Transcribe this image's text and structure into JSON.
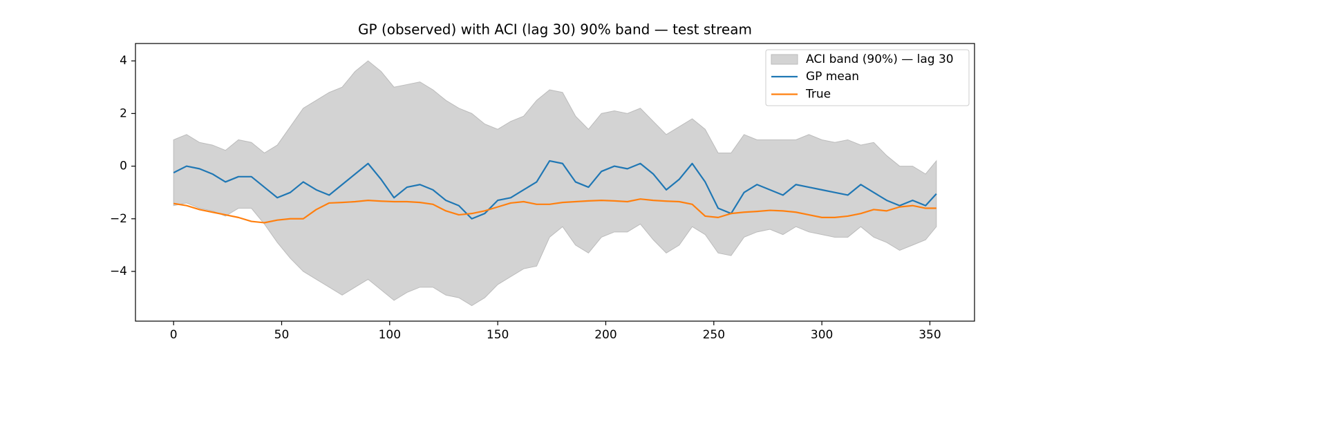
{
  "chart_data": {
    "type": "line",
    "title": "GP (observed) with ACI (lag 30) 90% band — test stream",
    "x": [
      0,
      6,
      12,
      18,
      24,
      30,
      36,
      42,
      48,
      54,
      60,
      66,
      72,
      78,
      84,
      90,
      96,
      102,
      108,
      114,
      120,
      126,
      132,
      138,
      144,
      150,
      156,
      162,
      168,
      174,
      180,
      186,
      192,
      198,
      204,
      210,
      216,
      222,
      228,
      234,
      240,
      246,
      252,
      258,
      264,
      270,
      276,
      282,
      288,
      294,
      300,
      306,
      312,
      318,
      324,
      330,
      336,
      342,
      348,
      353
    ],
    "band": {
      "name": "ACI band (90%) — lag 30",
      "color": "#d3d3d3",
      "edge_color": "#bbbbbb",
      "upper": [
        1.0,
        1.2,
        0.9,
        0.8,
        0.6,
        1.0,
        0.9,
        0.5,
        0.8,
        1.5,
        2.2,
        2.5,
        2.8,
        3.0,
        3.6,
        4.0,
        3.6,
        3.0,
        3.1,
        3.2,
        2.9,
        2.5,
        2.2,
        2.0,
        1.6,
        1.4,
        1.7,
        1.9,
        2.5,
        2.9,
        2.8,
        1.9,
        1.4,
        2.0,
        2.1,
        2.0,
        2.2,
        1.7,
        1.2,
        1.5,
        1.8,
        1.4,
        0.5,
        0.5,
        1.2,
        1.0,
        1.0,
        1.0,
        1.0,
        1.2,
        1.0,
        0.9,
        1.0,
        0.8,
        0.9,
        0.4,
        0.0,
        0.0,
        -0.3,
        0.2
      ],
      "lower": [
        -1.5,
        -1.4,
        -1.6,
        -1.7,
        -1.9,
        -1.6,
        -1.6,
        -2.2,
        -2.9,
        -3.5,
        -4.0,
        -4.3,
        -4.6,
        -4.9,
        -4.6,
        -4.3,
        -4.7,
        -5.1,
        -4.8,
        -4.6,
        -4.6,
        -4.9,
        -5.0,
        -5.3,
        -5.0,
        -4.5,
        -4.2,
        -3.9,
        -3.8,
        -2.7,
        -2.3,
        -3.0,
        -3.3,
        -2.7,
        -2.5,
        -2.5,
        -2.2,
        -2.8,
        -3.3,
        -3.0,
        -2.3,
        -2.6,
        -3.3,
        -3.4,
        -2.7,
        -2.5,
        -2.4,
        -2.6,
        -2.3,
        -2.5,
        -2.6,
        -2.7,
        -2.7,
        -2.3,
        -2.7,
        -2.9,
        -3.2,
        -3.0,
        -2.8,
        -2.3
      ]
    },
    "series": [
      {
        "name": "GP mean",
        "color": "#1f77b4",
        "values": [
          -0.25,
          0.0,
          -0.1,
          -0.3,
          -0.6,
          -0.4,
          -0.4,
          -0.8,
          -1.2,
          -1.0,
          -0.6,
          -0.9,
          -1.1,
          -0.7,
          -0.3,
          0.1,
          -0.5,
          -1.2,
          -0.8,
          -0.7,
          -0.9,
          -1.3,
          -1.5,
          -2.0,
          -1.8,
          -1.3,
          -1.2,
          -0.9,
          -0.6,
          0.2,
          0.1,
          -0.6,
          -0.8,
          -0.2,
          0.0,
          -0.1,
          0.1,
          -0.3,
          -0.9,
          -0.5,
          0.1,
          -0.6,
          -1.6,
          -1.8,
          -1.0,
          -0.7,
          -0.9,
          -1.1,
          -0.7,
          -0.8,
          -0.9,
          -1.0,
          -1.1,
          -0.7,
          -1.0,
          -1.3,
          -1.5,
          -1.3,
          -1.5,
          -1.05
        ]
      },
      {
        "name": "True",
        "color": "#ff7f0e",
        "values": [
          -1.42,
          -1.5,
          -1.65,
          -1.75,
          -1.85,
          -1.95,
          -2.1,
          -2.15,
          -2.05,
          -2.0,
          -2.0,
          -1.65,
          -1.4,
          -1.38,
          -1.35,
          -1.3,
          -1.33,
          -1.35,
          -1.35,
          -1.38,
          -1.45,
          -1.7,
          -1.85,
          -1.8,
          -1.7,
          -1.55,
          -1.4,
          -1.35,
          -1.45,
          -1.45,
          -1.38,
          -1.35,
          -1.32,
          -1.3,
          -1.32,
          -1.35,
          -1.25,
          -1.3,
          -1.33,
          -1.35,
          -1.45,
          -1.9,
          -1.95,
          -1.8,
          -1.75,
          -1.72,
          -1.68,
          -1.7,
          -1.75,
          -1.85,
          -1.95,
          -1.95,
          -1.9,
          -1.8,
          -1.65,
          -1.7,
          -1.55,
          -1.5,
          -1.6,
          -1.6
        ]
      }
    ],
    "xlim": [
      -17.65,
      370.65
    ],
    "ylim": [
      -5.89,
      4.66
    ],
    "xticks": [
      0,
      50,
      100,
      150,
      200,
      250,
      300,
      350
    ],
    "yticks": [
      {
        "value": -4,
        "label": "−4"
      },
      {
        "value": -2,
        "label": "−2"
      },
      0,
      2,
      4
    ],
    "legend": "upper right"
  }
}
